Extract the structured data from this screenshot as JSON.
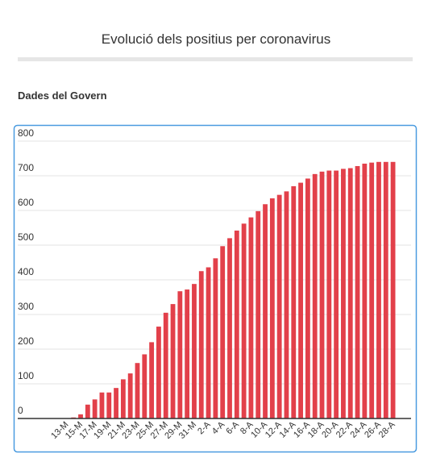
{
  "chart_data": {
    "type": "bar",
    "title": "Evolució dels positius per coronavirus",
    "subtitle": "Dades del Govern",
    "categories": [
      "13-M",
      null,
      "15-M",
      null,
      "17-M",
      null,
      "19-M",
      null,
      "21-M",
      null,
      "23-M",
      null,
      "25-M",
      null,
      "27-M",
      null,
      "29-M",
      null,
      "31-M",
      null,
      "2-A",
      null,
      "4-A",
      null,
      "6-A",
      null,
      "8-A",
      null,
      "10-A",
      null,
      "12-A",
      null,
      "14-A",
      null,
      "16-A",
      null,
      "18-A",
      null,
      "20-A",
      null,
      "22-A",
      null,
      "24-A",
      null,
      "26-A",
      null,
      "28-A"
    ],
    "values": [
      1,
      3,
      12,
      40,
      55,
      75,
      75,
      88,
      113,
      130,
      160,
      185,
      220,
      265,
      305,
      330,
      367,
      372,
      388,
      425,
      436,
      462,
      497,
      520,
      542,
      562,
      580,
      598,
      618,
      635,
      645,
      655,
      670,
      680,
      692,
      705,
      712,
      715,
      715,
      720,
      722,
      728,
      735,
      738,
      740,
      740,
      740
    ],
    "color": "#e2404a",
    "ylim": [
      0,
      800
    ],
    "yticks": [
      0,
      100,
      200,
      300,
      400,
      500,
      600,
      700,
      800
    ],
    "grid": true
  }
}
